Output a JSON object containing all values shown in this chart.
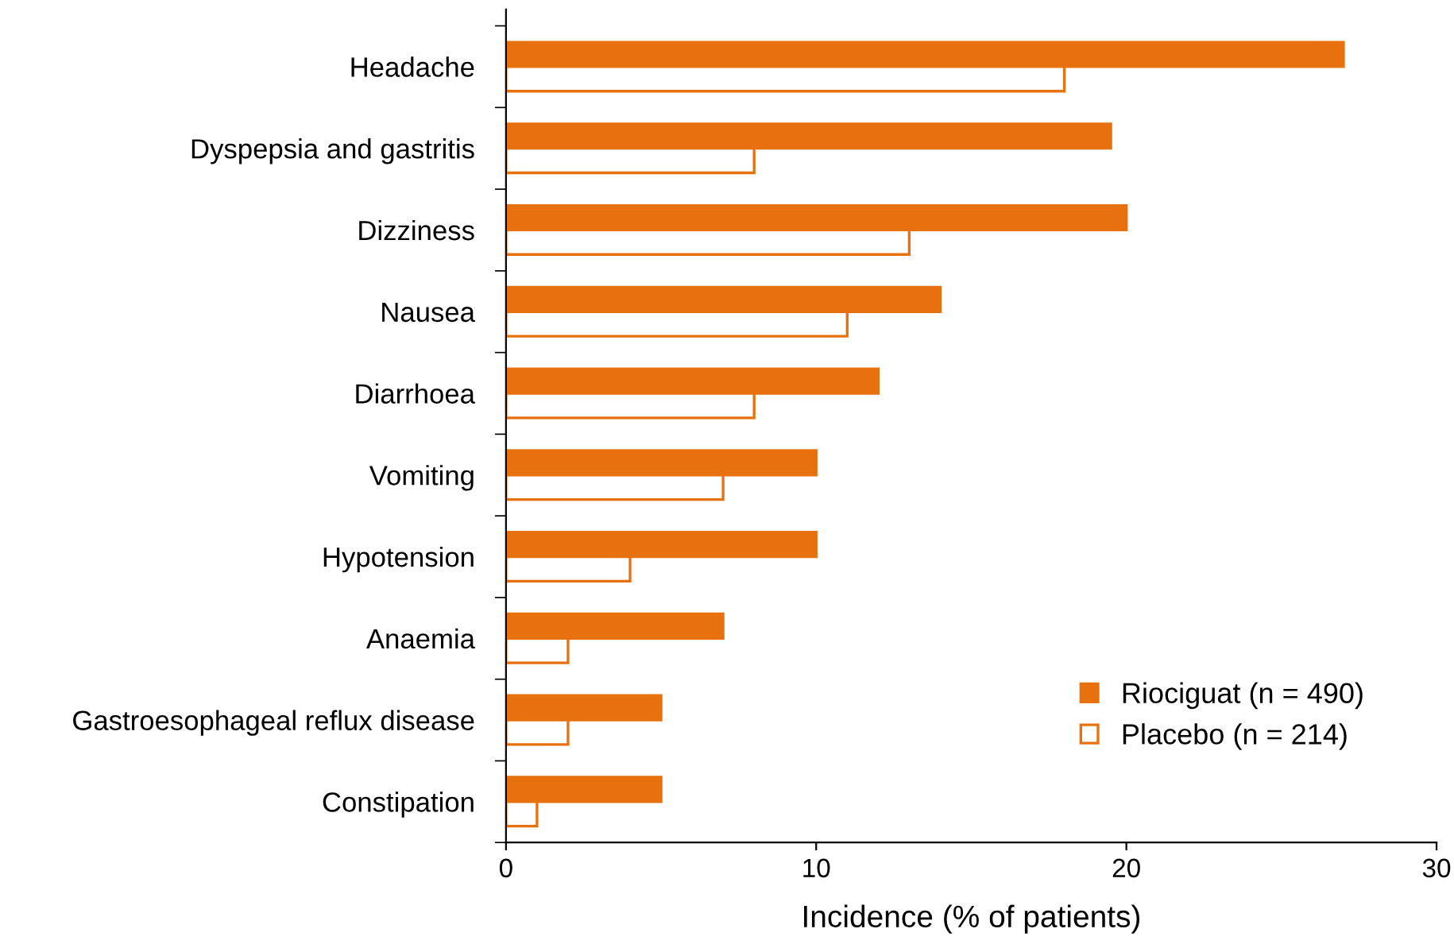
{
  "chart_data": {
    "type": "bar",
    "orientation": "horizontal",
    "xlabel": "Incidence (% of patients)",
    "categories": [
      "Headache",
      "Dyspepsia and gastritis",
      "Dizziness",
      "Nausea",
      "Diarrhoea",
      "Vomiting",
      "Hypotension",
      "Anaemia",
      "Gastroesophageal reflux disease",
      "Constipation"
    ],
    "series": [
      {
        "name": "Riociguat (n = 490)",
        "color": "#e8710f",
        "values": [
          27,
          19.5,
          20,
          14,
          12,
          10,
          10,
          7,
          5,
          5
        ]
      },
      {
        "name": "Placebo (n = 214)",
        "color": "#e8710f",
        "values": [
          18,
          8,
          13,
          11,
          8,
          7,
          4,
          2,
          2,
          1
        ]
      }
    ],
    "xlim": [
      0,
      30
    ],
    "xticks": [
      0,
      10,
      20,
      30
    ],
    "grid": false,
    "legend": "bottom right"
  }
}
